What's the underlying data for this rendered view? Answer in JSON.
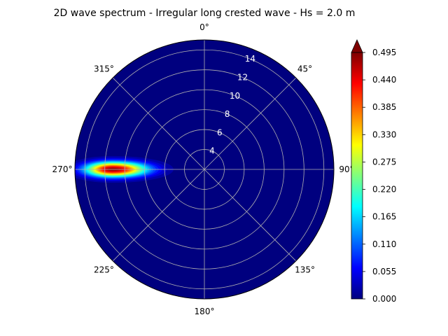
{
  "chart_data": {
    "type": "heatmap",
    "subtype": "polar",
    "title": "2D wave spectrum - Irregular long crested wave - Hs = 2.0 m",
    "theta_zero_location": "N",
    "theta_direction": "clockwise",
    "angle_tick_labels": [
      "0°",
      "45°",
      "90°",
      "135°",
      "180°",
      "225°",
      "270°",
      "315°"
    ],
    "angle_ticks_deg": [
      0,
      45,
      90,
      135,
      180,
      225,
      270,
      315
    ],
    "radial_ticks": [
      4,
      6,
      8,
      10,
      12,
      14
    ],
    "radial_tick_labels": [
      "4",
      "6",
      "8",
      "10",
      "12",
      "14"
    ],
    "radial_range": [
      2,
      15
    ],
    "grid": true,
    "colormap": "jet",
    "background_value": 0.0,
    "colorbar": {
      "ticks": [
        0.0,
        0.055,
        0.11,
        0.165,
        0.22,
        0.275,
        0.33,
        0.385,
        0.44,
        0.495
      ],
      "tick_labels": [
        "0.000",
        "0.055",
        "0.110",
        "0.165",
        "0.220",
        "0.275",
        "0.330",
        "0.385",
        "0.440",
        "0.495"
      ],
      "range": [
        0.0,
        0.495
      ],
      "extend": "max",
      "placement": "right"
    },
    "peak": {
      "direction_deg": 270,
      "radius": 11.2,
      "value": 0.5
    }
  }
}
